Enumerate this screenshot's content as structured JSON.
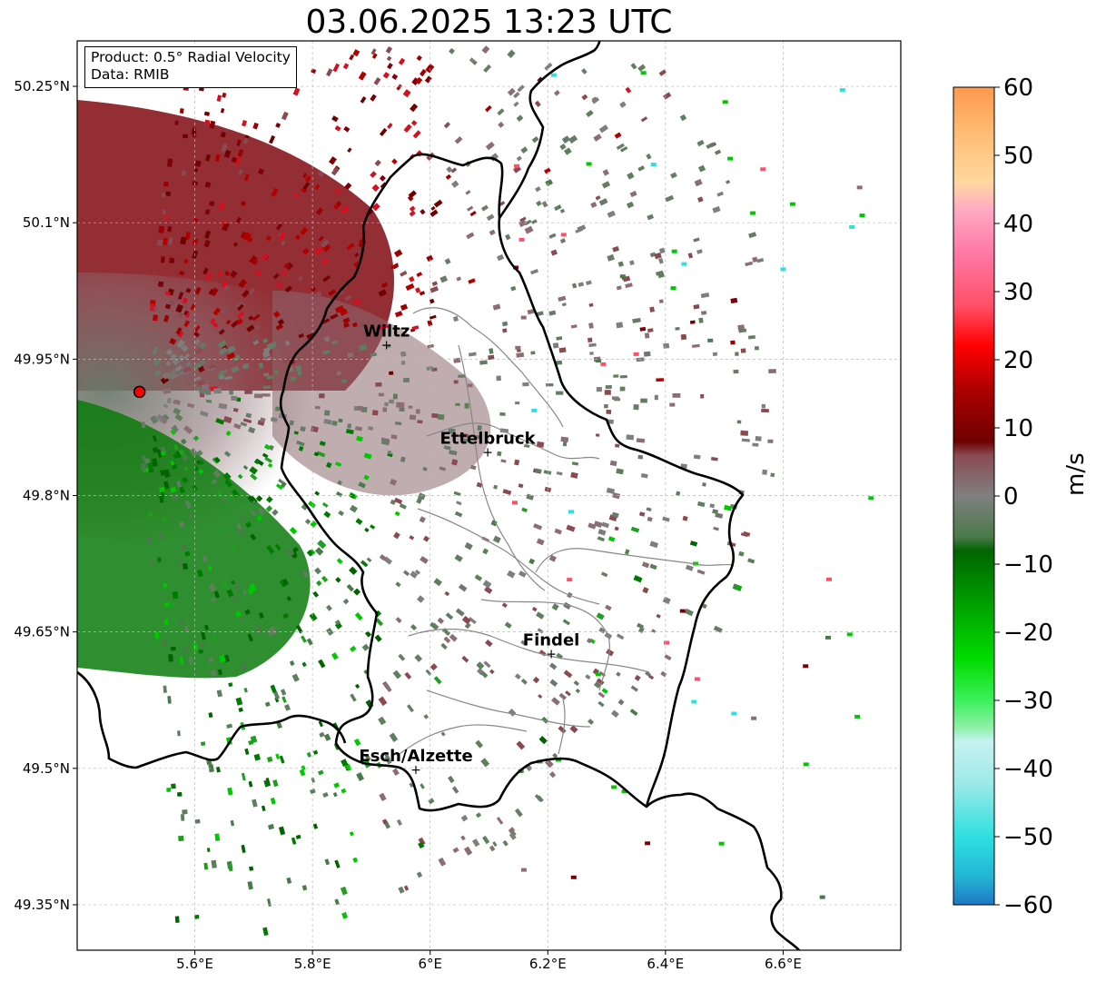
{
  "title": "03.06.2025 13:23 UTC",
  "info_box": {
    "product": "Product: 0.5° Radial Velocity",
    "data_source": "Data: RMIB"
  },
  "map": {
    "lon_range": [
      5.4,
      6.8
    ],
    "lat_range": [
      49.3,
      50.3
    ],
    "lon_ticks": [
      {
        "value": 5.6,
        "label": "5.6°E"
      },
      {
        "value": 5.8,
        "label": "5.8°E"
      },
      {
        "value": 6.0,
        "label": "6°E"
      },
      {
        "value": 6.2,
        "label": "6.2°E"
      },
      {
        "value": 6.4,
        "label": "6.4°E"
      },
      {
        "value": 6.6,
        "label": "6.6°E"
      }
    ],
    "lat_ticks": [
      {
        "value": 50.25,
        "label": "50.25°N"
      },
      {
        "value": 50.1,
        "label": "50.1°N"
      },
      {
        "value": 49.95,
        "label": "49.95°N"
      },
      {
        "value": 49.8,
        "label": "49.8°N"
      },
      {
        "value": 49.65,
        "label": "49.65°N"
      },
      {
        "value": 49.5,
        "label": "49.5°N"
      },
      {
        "value": 49.35,
        "label": "49.35°N"
      }
    ],
    "radar_site": {
      "lon": 5.506,
      "lat": 49.914
    },
    "cities": [
      {
        "name": "Wiltz",
        "lon": 5.932,
        "lat": 49.966
      },
      {
        "name": "Ettelbruck",
        "lon": 6.104,
        "lat": 49.848
      },
      {
        "name": "Findel",
        "lon": 6.212,
        "lat": 49.626
      },
      {
        "name": "Esch/Alzette",
        "lon": 5.982,
        "lat": 49.499
      }
    ],
    "colors": {
      "border": "#000000",
      "admin": "#888888",
      "grid": "#b8b8b8",
      "radar_marker": "#ff0000"
    }
  },
  "colorbar": {
    "label": "m/s",
    "min": -60,
    "max": 60,
    "ticks": [
      {
        "value": 60,
        "label": "60"
      },
      {
        "value": 50,
        "label": "50"
      },
      {
        "value": 40,
        "label": "40"
      },
      {
        "value": 30,
        "label": "30"
      },
      {
        "value": 20,
        "label": "20"
      },
      {
        "value": 10,
        "label": "10"
      },
      {
        "value": 0,
        "label": "0"
      },
      {
        "value": -10,
        "label": "−10"
      },
      {
        "value": -20,
        "label": "−20"
      },
      {
        "value": -30,
        "label": "−30"
      },
      {
        "value": -40,
        "label": "−40"
      },
      {
        "value": -50,
        "label": "−50"
      },
      {
        "value": -60,
        "label": "−60"
      }
    ],
    "color_stops": [
      {
        "value": -60,
        "color": "#1f78c4"
      },
      {
        "value": -56,
        "color": "#22b4d4"
      },
      {
        "value": -50,
        "color": "#2ee0e0"
      },
      {
        "value": -42,
        "color": "#9eeae8"
      },
      {
        "value": -36,
        "color": "#c6f2f0"
      },
      {
        "value": -34,
        "color": "#8ef0a8"
      },
      {
        "value": -30,
        "color": "#3cf05a"
      },
      {
        "value": -24,
        "color": "#00dc00"
      },
      {
        "value": -16,
        "color": "#00a000"
      },
      {
        "value": -8,
        "color": "#006400"
      },
      {
        "value": -6,
        "color": "#4a7a4a"
      },
      {
        "value": 0,
        "color": "#808080"
      },
      {
        "value": 6,
        "color": "#8a4a52"
      },
      {
        "value": 8,
        "color": "#6e0000"
      },
      {
        "value": 16,
        "color": "#b00000"
      },
      {
        "value": 22,
        "color": "#ff0000"
      },
      {
        "value": 28,
        "color": "#ff5068"
      },
      {
        "value": 36,
        "color": "#ff7aa8"
      },
      {
        "value": 42,
        "color": "#ffaac4"
      },
      {
        "value": 46,
        "color": "#ffd8a0"
      },
      {
        "value": 52,
        "color": "#ffc27a"
      },
      {
        "value": 60,
        "color": "#ff9a4e"
      }
    ]
  }
}
